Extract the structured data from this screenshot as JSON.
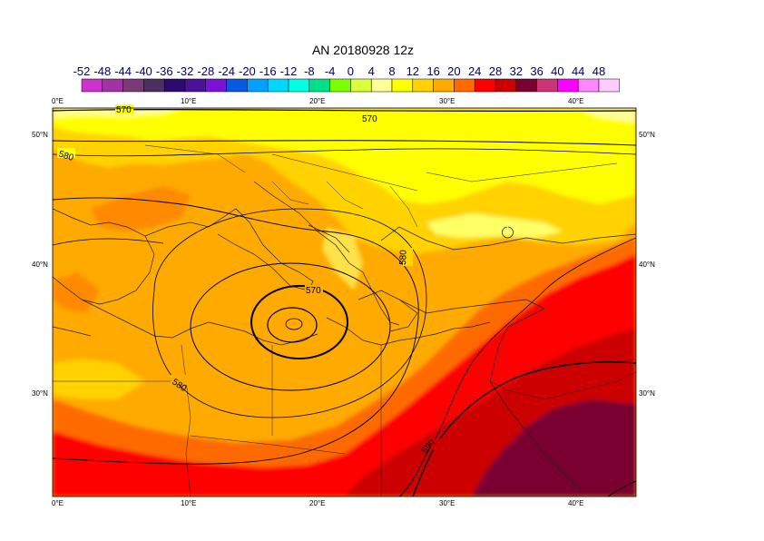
{
  "title": "AN  20180928 12z",
  "colorbar": {
    "tick_labels": [
      "-52",
      "-48",
      "-44",
      "-40",
      "-36",
      "-32",
      "-28",
      "-24",
      "-20",
      "-16",
      "-12",
      "-8",
      "-4",
      "0",
      "4",
      "8",
      "12",
      "16",
      "20",
      "24",
      "28",
      "32",
      "36",
      "40",
      "44",
      "48"
    ],
    "colors": [
      "#cc33cc",
      "#a233a2",
      "#7a3a7a",
      "#4b2f5f",
      "#2d0a6e",
      "#4b1196",
      "#7a12d6",
      "#0a57e0",
      "#00a0ff",
      "#00d8ff",
      "#00ffe5",
      "#00e08a",
      "#7cff00",
      "#d8ff3a",
      "#ffff99",
      "#ffff00",
      "#ffd200",
      "#ffaa00",
      "#ff6a00",
      "#ff0000",
      "#cc0000",
      "#7a0030",
      "#cc3377",
      "#ff00ff",
      "#ff88ff",
      "#ffccff"
    ]
  },
  "axes": {
    "lon_labels": [
      "0°E",
      "10°E",
      "20°E",
      "30°E",
      "40°E"
    ],
    "lat_labels": [
      "50°N",
      "40°N",
      "30°N"
    ]
  },
  "contour_labels": [
    "570",
    "570",
    "580",
    "570",
    "580",
    "580",
    "590"
  ]
}
